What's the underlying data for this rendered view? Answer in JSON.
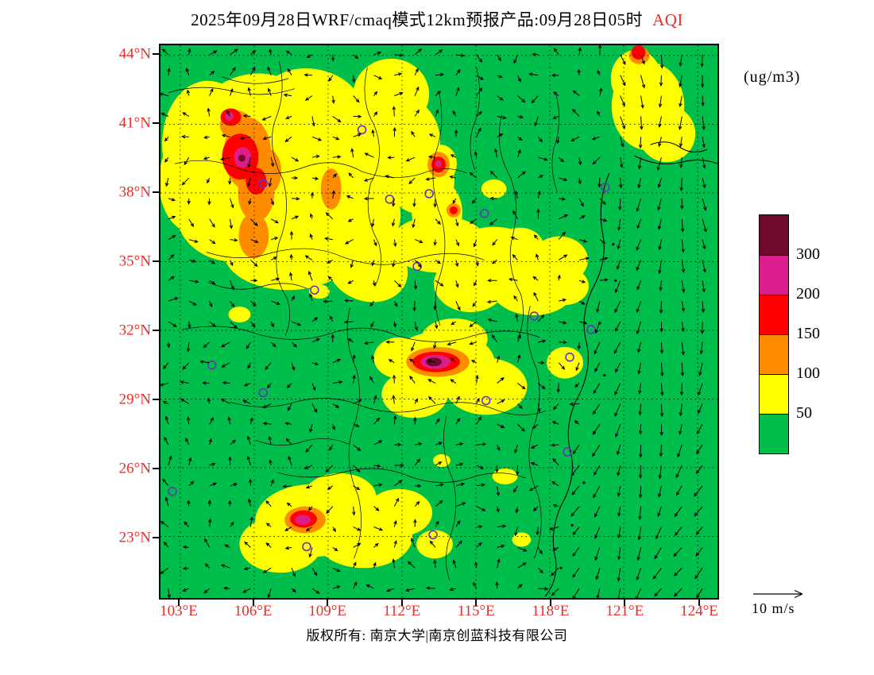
{
  "header": {
    "title": "2025年09月28日WRF/cmaq模式12km预报产品:09月28日05时",
    "variable": "AQI",
    "units": "(ug/m3)"
  },
  "axes": {
    "lat_ticks": [
      {
        "label": "44°N",
        "deg": 44
      },
      {
        "label": "41°N",
        "deg": 41
      },
      {
        "label": "38°N",
        "deg": 38
      },
      {
        "label": "35°N",
        "deg": 35
      },
      {
        "label": "32°N",
        "deg": 32
      },
      {
        "label": "29°N",
        "deg": 29
      },
      {
        "label": "26°N",
        "deg": 26
      },
      {
        "label": "23°N",
        "deg": 23
      }
    ],
    "lon_ticks": [
      {
        "label": "103°E",
        "deg": 103
      },
      {
        "label": "106°E",
        "deg": 106
      },
      {
        "label": "109°E",
        "deg": 109
      },
      {
        "label": "112°E",
        "deg": 112
      },
      {
        "label": "115°E",
        "deg": 115
      },
      {
        "label": "118°E",
        "deg": 118
      },
      {
        "label": "121°E",
        "deg": 121
      },
      {
        "label": "124°E",
        "deg": 124
      }
    ]
  },
  "legend": {
    "colors_top_to_bottom": [
      "#6E0A2D",
      "#DC1E8C",
      "#FE0000",
      "#FF8C00",
      "#FFFF00",
      "#00BE4B"
    ],
    "boundary_labels": [
      "300",
      "200",
      "150",
      "100",
      "50"
    ]
  },
  "wind_reference": {
    "label": "10 m/s"
  },
  "footer": {
    "copyright": "版权所有: 南京大学|南京创蓝科技有限公司"
  },
  "map": {
    "colors": {
      "green": "#00BE4B",
      "yellow": "#FFFF00",
      "orange": "#FF8C00",
      "red": "#FE0000",
      "magenta": "#DC1E8C",
      "darkred": "#6E0A2D",
      "marker": "#6633BB"
    },
    "field": {
      "yellow": [
        [
          60,
          125,
          58,
          80,
          0
        ],
        [
          115,
          92,
          72,
          55,
          -15
        ],
        [
          150,
          165,
          95,
          85,
          0
        ],
        [
          92,
          212,
          72,
          62,
          0
        ],
        [
          192,
          72,
          62,
          42,
          10
        ],
        [
          243,
          122,
          58,
          62,
          0
        ],
        [
          210,
          160,
          60,
          70,
          0
        ],
        [
          232,
          215,
          72,
          58,
          0
        ],
        [
          162,
          262,
          82,
          48,
          0
        ],
        [
          262,
          282,
          52,
          42,
          20
        ],
        [
          40,
          172,
          42,
          65,
          0
        ],
        [
          292,
          62,
          48,
          45,
          0
        ],
        [
          302,
          122,
          52,
          58,
          0
        ],
        [
          330,
          172,
          42,
          42,
          0
        ],
        [
          350,
          212,
          32,
          42,
          0
        ],
        [
          355,
          150,
          20,
          24,
          0
        ],
        [
          352,
          252,
          62,
          36,
          0
        ],
        [
          422,
          272,
          62,
          42,
          0
        ],
        [
          472,
          302,
          56,
          40,
          0
        ],
        [
          392,
          302,
          46,
          36,
          0
        ],
        [
          505,
          272,
          36,
          30,
          0
        ],
        [
          512,
          305,
          30,
          24,
          0
        ],
        [
          455,
          255,
          30,
          24,
          0
        ],
        [
          422,
          182,
          16,
          12,
          0
        ],
        [
          617,
          77,
          46,
          56,
          0
        ],
        [
          641,
          112,
          36,
          36,
          0
        ],
        [
          602,
          42,
          32,
          36,
          0
        ],
        [
          357,
          402,
          66,
          40,
          0
        ],
        [
          412,
          432,
          52,
          36,
          0
        ],
        [
          322,
          442,
          42,
          30,
          0
        ],
        [
          372,
          372,
          42,
          26,
          0
        ],
        [
          302,
          396,
          32,
          26,
          0
        ],
        [
          512,
          402,
          23,
          20,
          0
        ],
        [
          192,
          602,
          72,
          46,
          0
        ],
        [
          257,
          622,
          62,
          40,
          0
        ],
        [
          152,
          632,
          52,
          36,
          0
        ],
        [
          302,
          592,
          42,
          30,
          0
        ],
        [
          227,
          572,
          46,
          30,
          0
        ],
        [
          347,
          632,
          23,
          18,
          0
        ],
        [
          100,
          341,
          14,
          10,
          0
        ],
        [
          201,
          312,
          13,
          9,
          0
        ],
        [
          436,
          546,
          16,
          10,
          0
        ],
        [
          356,
          526,
          11,
          8,
          0
        ],
        [
          457,
          626,
          12,
          9,
          0
        ]
      ],
      "orange": [
        [
          110,
          137,
          30,
          46,
          0
        ],
        [
          133,
          160,
          20,
          30,
          0
        ],
        [
          121,
          187,
          23,
          36,
          0
        ],
        [
          118,
          241,
          19,
          29,
          0
        ],
        [
          96,
          101,
          21,
          18,
          0
        ],
        [
          216,
          182,
          13,
          26,
          0
        ],
        [
          352,
          151,
          14,
          16,
          0
        ],
        [
          371,
          209,
          9,
          9,
          0
        ],
        [
          351,
          401,
          40,
          19,
          0
        ],
        [
          183,
          601,
          26,
          17,
          0
        ],
        [
          606,
          13,
          13,
          11,
          0
        ]
      ],
      "red": [
        [
          101,
          141,
          23,
          29,
          0
        ],
        [
          121,
          172,
          13,
          17,
          0
        ],
        [
          89,
          91,
          13,
          11,
          0
        ],
        [
          352,
          151,
          9,
          10,
          0
        ],
        [
          371,
          209,
          5,
          5,
          0
        ],
        [
          349,
          401,
          30,
          13,
          0
        ],
        [
          181,
          600,
          17,
          11,
          0
        ],
        [
          605,
          9,
          9,
          9,
          0
        ]
      ],
      "magenta": [
        [
          104,
          142,
          11,
          13,
          0
        ],
        [
          87,
          90,
          5.5,
          5.5,
          0
        ],
        [
          348,
          401,
          19,
          9,
          0
        ],
        [
          180,
          601,
          10,
          6.5,
          0
        ],
        [
          352,
          150,
          4,
          4.5,
          0
        ]
      ],
      "darkred": [
        [
          346,
          401,
          10,
          5.5,
          0
        ],
        [
          103,
          143,
          4.5,
          4.5,
          0
        ]
      ]
    },
    "borders": [
      "M150,20 Q160,60 145,95 Q134,130 155,170 Q166,210 150,250 Q140,290 160,320 Q168,345 158,368",
      "M262,28 Q252,70 270,100 Q286,140 266,175 Q256,215 276,250 Q284,278 272,305",
      "M18,150 Q60,140 95,155 Q140,170 180,155 Q220,140 255,160 Q300,175 338,160 Q365,152 388,162",
      "M58,262 Q100,276 140,263 Q190,250 230,268 Q280,286 320,271 Q370,256 410,272",
      "M352,58 Q362,100 347,140 Q340,180 356,220 Q366,260 351,300 Q344,330 354,355",
      "M432,88 Q422,130 442,165 Q456,200 446,240 Q436,280 456,315 Q464,345 452,372",
      "M28,360 Q80,350 120,365 Q170,380 215,365 Q260,350 300,368 Q350,383 395,368 Q440,355 480,370",
      "M88,452 Q130,464 170,452 Q215,440 255,457 Q300,472 340,458 Q385,445 425,462 Q458,474 488,463",
      "M148,541 Q190,553 230,541 Q275,529 315,546 Q355,561 395,547 Q430,536 462,548",
      "M468,330 Q458,370 476,410 Q486,450 470,490 Q460,530 478,570 Q488,610 473,650",
      "M240,332 Q230,372 248,410 Q258,450 242,490 Q232,530 250,570 Q260,610 245,650",
      "M362,470 Q352,510 370,550 Q380,590 364,630 Q358,655 366,678",
      "M78,40 Q120,56 162,42",
      "M400,28 Q410,70 395,105 Q388,132 398,158",
      "M60,300 Q95,315 130,305 Q160,297 185,308",
      "M120,500 Q150,512 180,502 Q210,493 238,505",
      "M10,60 Q50,48 90,58 Q130,68 170,55",
      "M500,60 Q510,95 498,130 Q492,158 502,185"
    ],
    "coastlines": [
      "M568,162 Q552,200 560,240 Q566,275 546,310 Q530,345 540,380 Q546,415 526,450 Q510,485 520,520 Q526,550 506,585 Q492,620 500,650 Q504,676 487,698",
      "M600,140 Q630,155 660,148 Q685,142 705,150",
      "M620,126 Q640,118 656,128 Q672,140 692,132"
    ],
    "islands": [
      [
        576,
        298
      ],
      [
        562,
        418
      ],
      [
        549,
        490
      ],
      [
        536,
        554
      ],
      [
        521,
        608
      ],
      [
        507,
        662
      ],
      [
        556,
        352
      ],
      [
        573,
        252
      ]
    ],
    "city_markers": [
      [
        130,
        175
      ],
      [
        255,
        107
      ],
      [
        290,
        195
      ],
      [
        340,
        188
      ],
      [
        410,
        213
      ],
      [
        563,
        180
      ],
      [
        325,
        280
      ],
      [
        195,
        310
      ],
      [
        473,
        343
      ],
      [
        545,
        360
      ],
      [
        518,
        395
      ],
      [
        65,
        405
      ],
      [
        130,
        440
      ],
      [
        412,
        450
      ],
      [
        515,
        515
      ],
      [
        15,
        565
      ],
      [
        185,
        635
      ],
      [
        345,
        620
      ]
    ]
  },
  "chart_data": {
    "type": "heatmap",
    "subtype": "filled contour AQI map with wind vectors",
    "title": "2025年09月28日WRF/cmaq模式12km预报产品:09月28日05时 AQI",
    "units": "ug/m3",
    "x": {
      "label": "longitude",
      "ticks": [
        "103°E",
        "106°E",
        "109°E",
        "112°E",
        "115°E",
        "118°E",
        "121°E",
        "124°E"
      ]
    },
    "y": {
      "label": "latitude",
      "ticks": [
        "44°N",
        "41°N",
        "38°N",
        "35°N",
        "32°N",
        "29°N",
        "26°N",
        "23°N"
      ]
    },
    "legend": {
      "position": "right",
      "levels": [
        50,
        100,
        150,
        200,
        300
      ],
      "colors_low_to_high": [
        "#00BE4B",
        "#FFFF00",
        "#FF8C00",
        "#FE0000",
        "#DC1E8C",
        "#6E0A2D"
      ]
    },
    "wind_reference": "10 m/s",
    "high_aqi_regions": [
      {
        "area": "about 105-108E, 37-41N (NW cluster)",
        "aqi": "150-300 cores inside 50-150 field"
      },
      {
        "area": "about 113-114E, 30-31N (central spot)",
        "aqi": "200 to above 300 small core"
      },
      {
        "area": "about 107-109E, 23.5-24.5N (south cluster)",
        "aqi": "100-250"
      },
      {
        "area": "about 113.5E, 39.5N small spot",
        "aqi": "100-250"
      },
      {
        "area": "about 121-122.5E, 41-43N (NE patch)",
        "aqi": "50-150"
      },
      {
        "area": "broad north / central / parts of south China",
        "aqi": "50-100 (yellow)"
      },
      {
        "area": "remaining land and offshore areas",
        "aqi": "below 50 (green)"
      }
    ]
  }
}
